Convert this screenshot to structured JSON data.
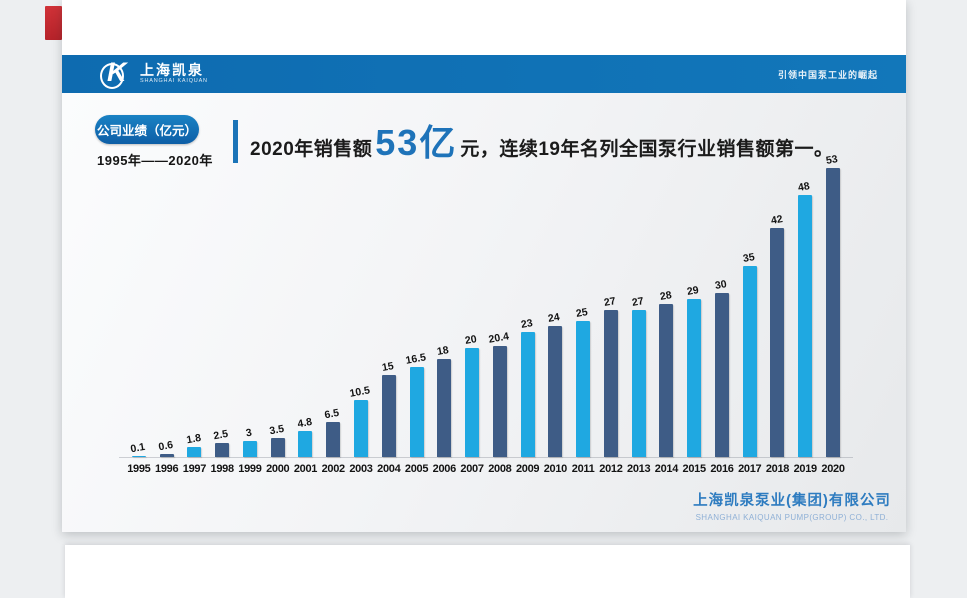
{
  "slide": {
    "header": {
      "brand_cn": "上海凯泉",
      "brand_en": "SHANGHAI KAIQUAN",
      "slogan": "引领中国泵工业的崛起",
      "band_color": "#1173b6"
    },
    "badge_label": "公司业绩（亿元）",
    "date_range": "1995年——2020年",
    "headline": {
      "prefix": "2020年销售额",
      "highlight": "53亿",
      "unit": "元，",
      "rest": "连续19年名列全国泵行业销售额第一。",
      "highlight_color": "#1e73b9"
    },
    "footer": {
      "company_cn": "上海凯泉泵业(集团)有限公司",
      "company_en": "SHANGHAI KAIQUAN PUMP(GROUP) CO., LTD."
    }
  },
  "chart_data": {
    "type": "bar",
    "title": "公司业绩（亿元） 1995年——2020年",
    "categories": [
      "1995",
      "1996",
      "1997",
      "1998",
      "1999",
      "2000",
      "2001",
      "2002",
      "2003",
      "2004",
      "2005",
      "2006",
      "2007",
      "2008",
      "2009",
      "2010",
      "2011",
      "2012",
      "2013",
      "2014",
      "2015",
      "2016",
      "2017",
      "2018",
      "2019",
      "2020"
    ],
    "values": [
      0.1,
      0.6,
      1.8,
      2.5,
      3,
      3.5,
      4.8,
      6.5,
      10.5,
      15,
      16.5,
      18,
      20,
      20.4,
      23,
      24,
      25,
      27,
      27,
      28,
      29,
      30,
      35,
      42,
      48,
      53
    ],
    "xlabel": "",
    "ylabel": "",
    "ylim": [
      0,
      53
    ],
    "grid": false,
    "data_labels": true,
    "legend": "none",
    "colors": {
      "odd_year_bar": "#1fa8e1",
      "even_year_bar": "#3e5c86"
    }
  }
}
